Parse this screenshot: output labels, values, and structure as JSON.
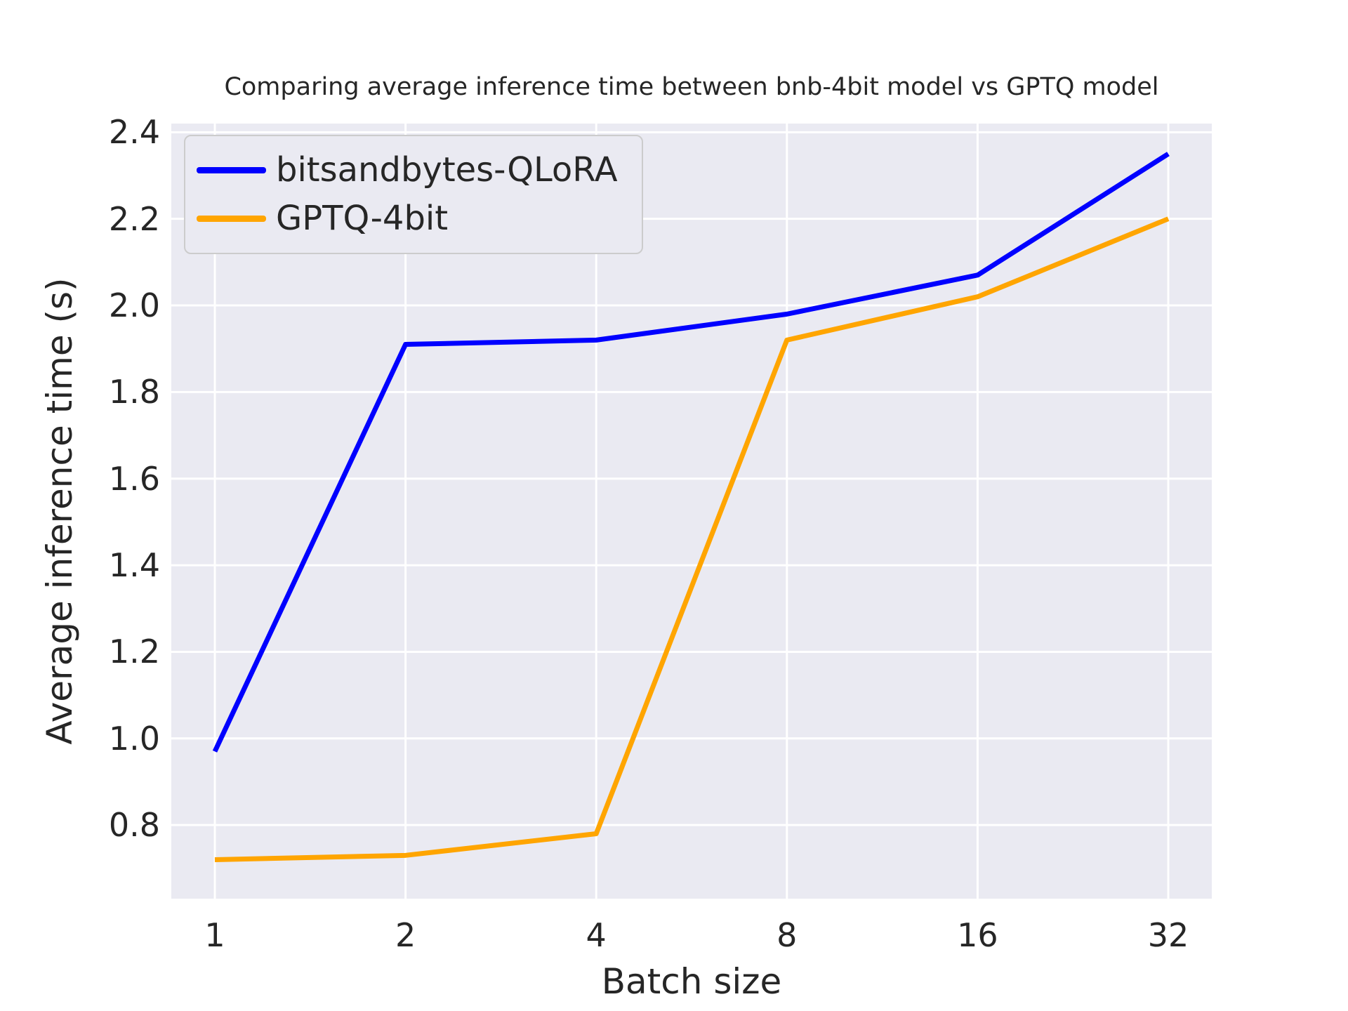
{
  "chart_data": {
    "type": "line",
    "title": "Comparing average inference time between bnb-4bit model vs GPTQ model",
    "xlabel": "Batch size",
    "ylabel": "Average inference time (s)",
    "categories": [
      "1",
      "2",
      "4",
      "8",
      "16",
      "32"
    ],
    "series": [
      {
        "name": "bitsandbytes-QLoRA",
        "color": "#0000ff",
        "values": [
          0.97,
          1.91,
          1.92,
          1.98,
          2.07,
          2.35
        ]
      },
      {
        "name": "GPTQ-4bit",
        "color": "#ffa500",
        "values": [
          0.72,
          0.73,
          0.78,
          1.92,
          2.02,
          2.2
        ]
      }
    ],
    "ylim": [
      0.63,
      2.42
    ],
    "yticks": [
      0.8,
      1.0,
      1.2,
      1.4,
      1.6,
      1.8,
      2.0,
      2.2,
      2.4
    ],
    "grid": true,
    "legend_position": "upper left",
    "colors": {
      "figure_background": "#ffffff",
      "axes_background": "#eaeaf2",
      "gridline": "#ffffff",
      "text": "#262626"
    }
  }
}
